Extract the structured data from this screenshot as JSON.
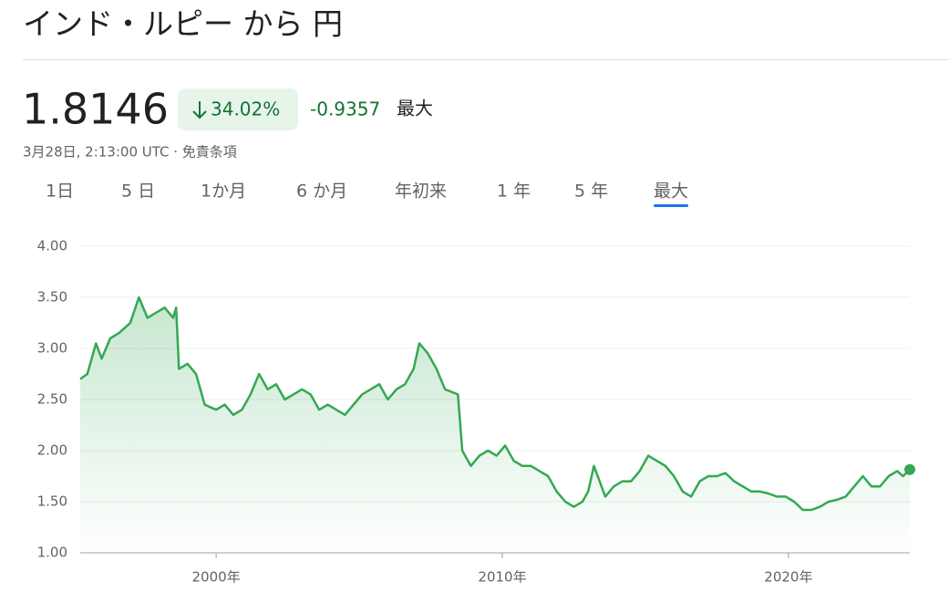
{
  "header": {
    "title": "インド・ルピー から 円",
    "price": "1.8146",
    "change_percent": "34.02%",
    "change": "-0.9357",
    "period": "最大",
    "timestamp": "3月28日, 2:13:00 UTC · 免責条項"
  },
  "tabs": [
    "1日",
    "5 日",
    "1か月",
    "6 か月",
    "年初来",
    "1 年",
    "5 年",
    "最大"
  ],
  "chart_data": {
    "type": "line",
    "color": "#34a853",
    "grid": true,
    "xlim": [
      1995.25,
      2024.24
    ],
    "xticks": [
      {
        "value": 2000,
        "label": "2000年"
      },
      {
        "value": 2010,
        "label": "2010年"
      },
      {
        "value": 2020,
        "label": "2020年"
      }
    ],
    "ylim": [
      1.0,
      4.0
    ],
    "yticks": [
      {
        "value": 1.0,
        "label": "1.00"
      },
      {
        "value": 1.5,
        "label": "1.50"
      },
      {
        "value": 2.0,
        "label": "2.00"
      },
      {
        "value": 2.5,
        "label": "2.50"
      },
      {
        "value": 3.0,
        "label": "3.00"
      },
      {
        "value": 3.5,
        "label": "3.50"
      },
      {
        "value": 4.0,
        "label": "4.00"
      }
    ],
    "x": [
      1995.25,
      1995.5,
      1995.8,
      1996.0,
      1996.3,
      1996.6,
      1997.0,
      1997.3,
      1997.6,
      1997.9,
      1998.2,
      1998.5,
      1998.6,
      1998.7,
      1999.0,
      1999.3,
      1999.6,
      2000.0,
      2000.3,
      2000.6,
      2000.9,
      2001.2,
      2001.5,
      2001.8,
      2002.1,
      2002.4,
      2002.7,
      2003.0,
      2003.3,
      2003.6,
      2003.9,
      2004.2,
      2004.5,
      2004.8,
      2005.1,
      2005.4,
      2005.7,
      2006.0,
      2006.3,
      2006.6,
      2006.9,
      2007.1,
      2007.4,
      2007.7,
      2008.0,
      2008.45,
      2008.6,
      2008.9,
      2009.2,
      2009.5,
      2009.8,
      2010.1,
      2010.4,
      2010.7,
      2011.0,
      2011.3,
      2011.6,
      2011.9,
      2012.2,
      2012.5,
      2012.8,
      2013.0,
      2013.2,
      2013.6,
      2013.9,
      2014.2,
      2014.5,
      2014.8,
      2015.1,
      2015.4,
      2015.7,
      2016.0,
      2016.3,
      2016.6,
      2016.9,
      2017.2,
      2017.5,
      2017.8,
      2018.1,
      2018.4,
      2018.7,
      2019.0,
      2019.3,
      2019.6,
      2019.9,
      2020.2,
      2020.5,
      2020.8,
      2021.1,
      2021.4,
      2021.7,
      2022.0,
      2022.3,
      2022.6,
      2022.9,
      2023.2,
      2023.5,
      2023.8,
      2024.0,
      2024.24
    ],
    "values": [
      2.7,
      2.75,
      3.05,
      2.9,
      3.1,
      3.15,
      3.25,
      3.5,
      3.3,
      3.35,
      3.4,
      3.3,
      3.4,
      2.8,
      2.85,
      2.75,
      2.45,
      2.4,
      2.45,
      2.35,
      2.4,
      2.55,
      2.75,
      2.6,
      2.65,
      2.5,
      2.55,
      2.6,
      2.55,
      2.4,
      2.45,
      2.4,
      2.35,
      2.45,
      2.55,
      2.6,
      2.65,
      2.5,
      2.6,
      2.65,
      2.8,
      3.05,
      2.95,
      2.8,
      2.6,
      2.55,
      2.0,
      1.85,
      1.95,
      2.0,
      1.95,
      2.05,
      1.9,
      1.85,
      1.85,
      1.8,
      1.75,
      1.6,
      1.5,
      1.45,
      1.5,
      1.6,
      1.85,
      1.55,
      1.65,
      1.7,
      1.7,
      1.8,
      1.95,
      1.9,
      1.85,
      1.75,
      1.6,
      1.55,
      1.7,
      1.75,
      1.75,
      1.78,
      1.7,
      1.65,
      1.6,
      1.6,
      1.58,
      1.55,
      1.55,
      1.5,
      1.42,
      1.42,
      1.45,
      1.5,
      1.52,
      1.55,
      1.65,
      1.75,
      1.65,
      1.65,
      1.75,
      1.8,
      1.75,
      1.8146
    ]
  }
}
